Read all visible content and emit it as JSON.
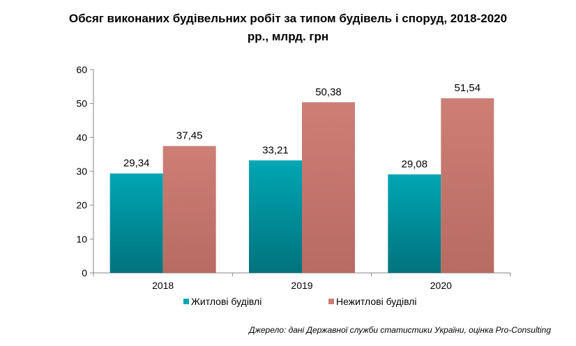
{
  "title_lines": [
    "Обсяг виконаних будівельних робіт за типом будівель і споруд, 2018-2020",
    "рр., млрд. грн"
  ],
  "source": "Джерело: дані Державної служби статистики України, оцінка Pro-Consulting",
  "colors": {
    "residential_top": "#00a6b4",
    "residential_bottom": "#00737d",
    "nonresidential_top": "#cd7f76",
    "nonresidential_bottom": "#b86b62"
  },
  "chart_data": {
    "type": "bar",
    "title": "Обсяг виконаних будівельних робіт за типом будівель і споруд, 2018-2020 рр., млрд. грн",
    "categories": [
      "2018",
      "2019",
      "2020"
    ],
    "series": [
      {
        "name": "Житлові будівлі",
        "values": [
          29.34,
          33.21,
          29.08
        ],
        "labels": [
          "29,34",
          "33,21",
          "29,08"
        ]
      },
      {
        "name": "Нежитлові будівлі",
        "values": [
          37.45,
          50.38,
          51.54
        ],
        "labels": [
          "37,45",
          "50,38",
          "51,54"
        ]
      }
    ],
    "ylim": [
      0,
      60
    ],
    "yticks": [
      "0",
      "10",
      "20",
      "30",
      "40",
      "50",
      "60"
    ],
    "grid": false,
    "legend_position": "bottom"
  }
}
